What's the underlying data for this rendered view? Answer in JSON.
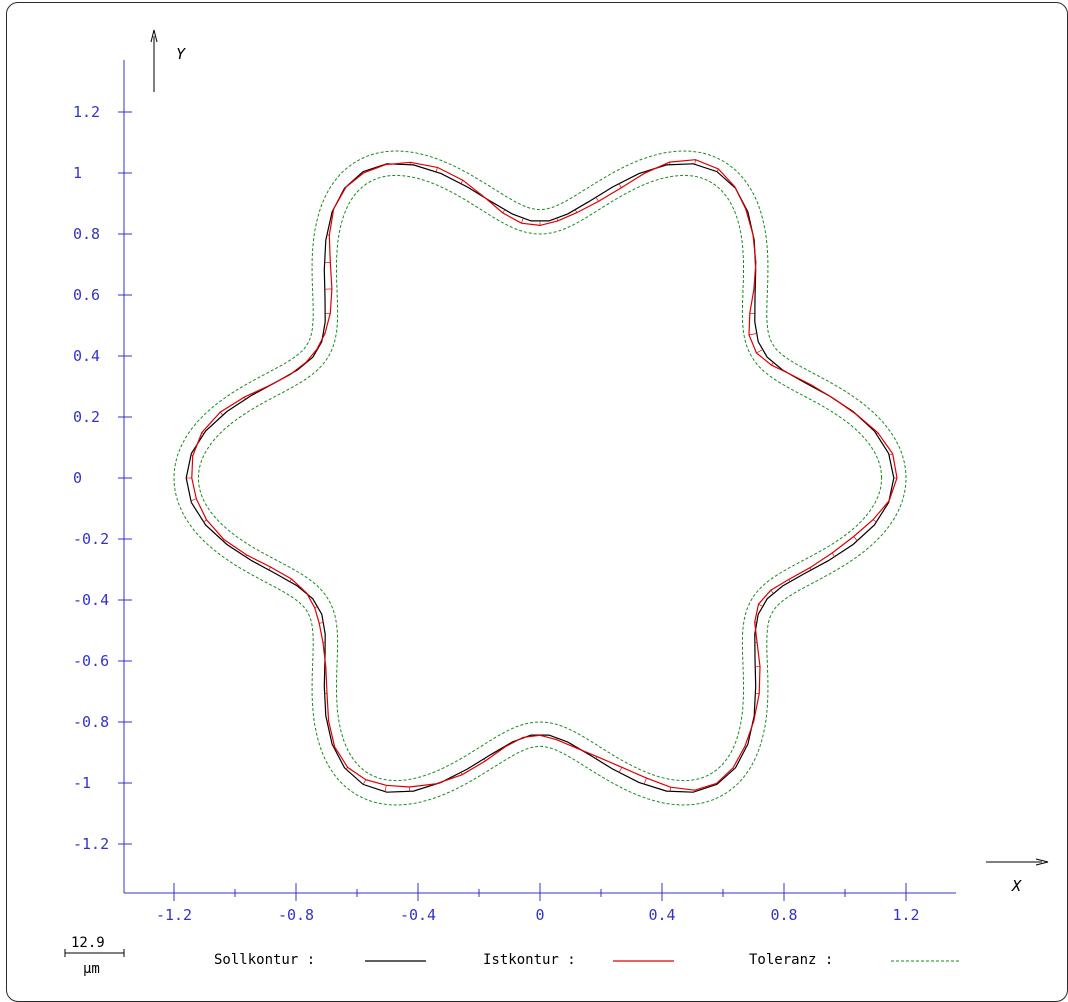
{
  "chart_data": {
    "type": "line",
    "xlabel": "X",
    "ylabel": "Y",
    "xlim": [
      -1.35,
      1.35
    ],
    "ylim": [
      -1.35,
      1.35
    ],
    "xticks": [
      "-1.2",
      "-0.8",
      "-0.4",
      "0",
      "0.4",
      "0.8",
      "1.2"
    ],
    "yticks": [
      "1.2",
      "1",
      "0.8",
      "0.6",
      "0.4",
      "0.2",
      "0",
      "-0.2",
      "-0.4",
      "-0.6",
      "-0.8",
      "-1",
      "-1.2"
    ],
    "grid": false,
    "legend_position": "bottom",
    "scale_bar": {
      "value": "12.9",
      "unit": "μm"
    },
    "contour_model": {
      "lobes": 6,
      "mean_radius": 1.0,
      "amplitude": 0.16,
      "tolerance_offset": 0.04
    },
    "series": [
      {
        "name": "Sollkontur :",
        "color": "#000000",
        "style": "solid"
      },
      {
        "name": "Istkontur :",
        "color": "#dd0000",
        "style": "solid"
      },
      {
        "name": "Toleranz :",
        "color": "#1a8a1a",
        "style": "dashed"
      }
    ],
    "colors": {
      "axis": "#3333cc",
      "tick_label": "#3333cc",
      "text": "#000000"
    }
  }
}
